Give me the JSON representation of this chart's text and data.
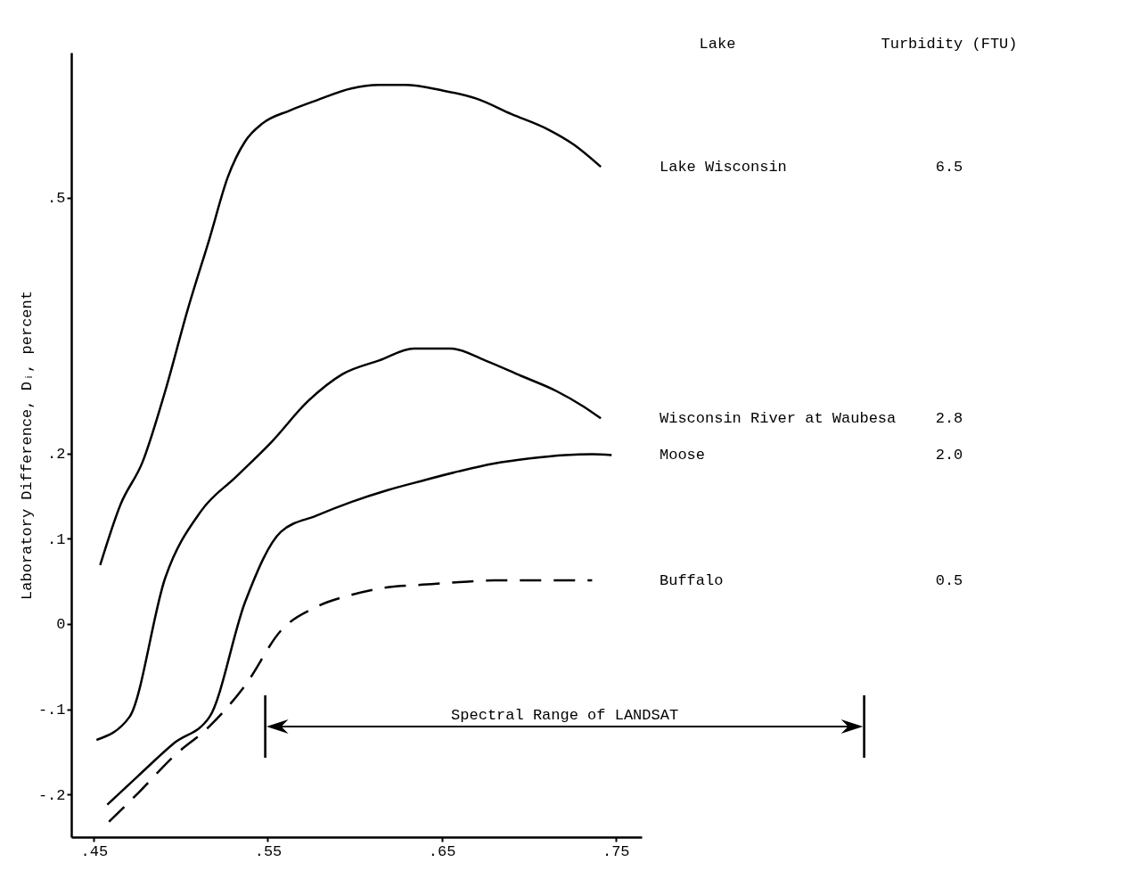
{
  "chart_data": {
    "type": "line",
    "ylabel": "Laboratory Difference, Dᵢ, percent",
    "legend_title": "Lake",
    "xlim": [
      0.437,
      0.765
    ],
    "ylim": [
      -0.25,
      0.67
    ],
    "xticks": [
      {
        "value": 0.45,
        "label": ".45"
      },
      {
        "value": 0.55,
        "label": ".55"
      },
      {
        "value": 0.65,
        "label": ".65"
      },
      {
        "value": 0.75,
        "label": ".75"
      }
    ],
    "yticks": [
      {
        "value": -0.2,
        "label": "-.2"
      },
      {
        "value": -0.1,
        "label": "-.1"
      },
      0,
      {
        "value": 0.1,
        "label": ".1"
      },
      {
        "value": 0.2,
        "label": ".2"
      },
      {
        "value": 0.5,
        "label": ".5"
      }
    ],
    "grid": false,
    "marker": "none",
    "annotations": [
      "Turbidity (FTU)",
      "6.5",
      "2.8",
      "2.0",
      "0.5",
      "Spectral Range of LANDSAT"
    ],
    "series": [
      {
        "name": "Lake Wisconsin",
        "color": "#000000",
        "line_style": "solid",
        "x": [
          0.4536,
          0.4653,
          0.478,
          0.491,
          0.504,
          0.5165,
          0.527,
          0.537,
          0.547,
          0.5625,
          0.578,
          0.598,
          0.614,
          0.629,
          0.6495,
          0.67,
          0.69,
          0.711,
          0.726,
          0.7415
        ],
        "values": [
          0.069,
          0.14,
          0.19,
          0.273,
          0.369,
          0.452,
          0.524,
          0.566,
          0.587,
          0.602,
          0.614,
          0.628,
          0.632,
          0.632,
          0.626,
          0.616,
          0.598,
          0.58,
          0.562,
          0.536
        ]
      },
      {
        "name": "Wisconsin River at Waubesa",
        "color": "#000000",
        "line_style": "solid",
        "x": [
          0.4515,
          0.4705,
          0.491,
          0.5115,
          0.532,
          0.552,
          0.573,
          0.593,
          0.614,
          0.634,
          0.655,
          0.675,
          0.6955,
          0.716,
          0.7315,
          0.7415
        ],
        "values": [
          -0.136,
          -0.109,
          0.054,
          0.132,
          0.173,
          0.213,
          0.261,
          0.293,
          0.309,
          0.323,
          0.323,
          0.309,
          0.291,
          0.273,
          0.255,
          0.241
        ]
      },
      {
        "name": "Moose",
        "color": "#000000",
        "line_style": "solid",
        "x": [
          0.4577,
          0.4756,
          0.496,
          0.5165,
          0.537,
          0.5575,
          0.578,
          0.598,
          0.619,
          0.639,
          0.66,
          0.68,
          0.7005,
          0.721,
          0.7365,
          0.7477
        ],
        "values": [
          -0.212,
          -0.178,
          -0.14,
          -0.109,
          0.026,
          0.108,
          0.127,
          0.143,
          0.157,
          0.168,
          0.179,
          0.188,
          0.194,
          0.198,
          0.199,
          0.198
        ]
      },
      {
        "name": "Buffalo",
        "color": "#000000",
        "line_style": "dashed",
        "x": [
          0.4587,
          0.4756,
          0.496,
          0.5165,
          0.537,
          0.5575,
          0.578,
          0.598,
          0.619,
          0.639,
          0.66,
          0.68,
          0.7005,
          0.7365
        ],
        "values": [
          -0.232,
          -0.198,
          -0.155,
          -0.12,
          -0.072,
          -0.008,
          0.02,
          0.034,
          0.043,
          0.046,
          0.049,
          0.051,
          0.051,
          0.051
        ]
      }
    ]
  }
}
